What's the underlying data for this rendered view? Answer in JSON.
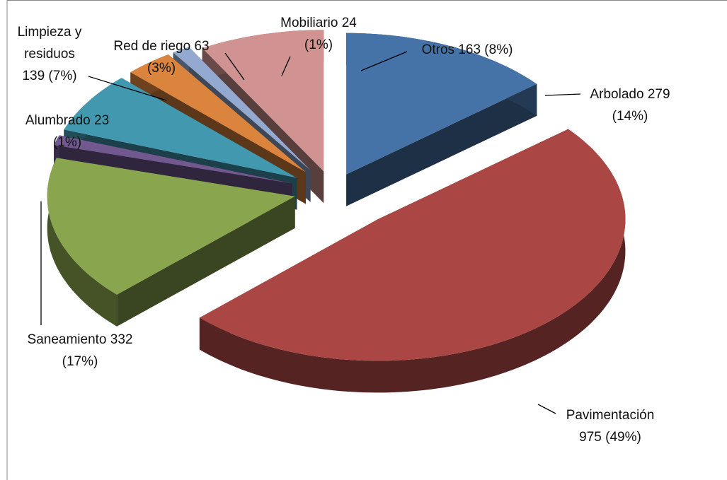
{
  "chart_data": {
    "type": "pie",
    "categories": [
      "Arbolado",
      "Pavimentación",
      "Saneamiento",
      "Alumbrado",
      "Limpieza y residuos",
      "Red de riego",
      "Mobiliario",
      "Otros"
    ],
    "values": [
      279,
      975,
      332,
      23,
      139,
      63,
      24,
      163
    ],
    "percent_labels": [
      "(14%)",
      "(49%)",
      "(17%)",
      "(1%)",
      "(7%)",
      "(3%)",
      "(1%)",
      "(8%)"
    ],
    "colors": [
      "#4572a7",
      "#aa4643",
      "#89a54e",
      "#71588f",
      "#4198af",
      "#db843d",
      "#93a9cf",
      "#d19392"
    ],
    "style": "3d-exploded"
  }
}
